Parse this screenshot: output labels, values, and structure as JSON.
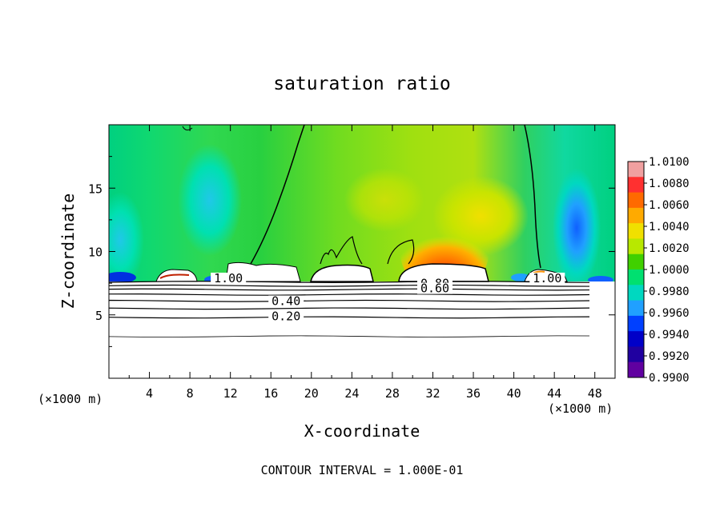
{
  "chart_data": {
    "type": "heatmap",
    "title": "saturation ratio",
    "xlabel": "X-coordinate",
    "ylabel": "Z-coordinate",
    "x_unit": "(×1000 m)",
    "x_unit_right": "(×1000 m)",
    "footer": "CONTOUR INTERVAL = 1.000E-01",
    "xlim": [
      0,
      50
    ],
    "ylim": [
      0,
      20
    ],
    "x_ticks": [
      "4",
      "8",
      "12",
      "16",
      "20",
      "24",
      "28",
      "32",
      "36",
      "40",
      "44",
      "48"
    ],
    "y_ticks": [
      "5",
      "10",
      "15"
    ],
    "colorbar": {
      "ticks": [
        "1.0100",
        "1.0080",
        "1.0060",
        "1.0040",
        "1.0020",
        "1.0000",
        "0.9980",
        "0.9960",
        "0.9940",
        "0.9920",
        "0.9900"
      ],
      "colors": [
        "#f0a0a0",
        "#ff3030",
        "#ff6a00",
        "#ffaa00",
        "#f0e000",
        "#b8e800",
        "#40d000",
        "#00e070",
        "#00d8c0",
        "#20a0ff",
        "#0040ff",
        "#0000c8",
        "#2000a0",
        "#6000a0"
      ]
    },
    "contour_labels": [
      {
        "text": "1.00",
        "x": 11.8,
        "z": 7.7
      },
      {
        "text": "1.00",
        "x": 43.3,
        "z": 7.7
      },
      {
        "text": "0.80",
        "x": 32.2,
        "z": 7.3
      },
      {
        "text": "0.60",
        "x": 32.2,
        "z": 6.9
      },
      {
        "text": "0.40",
        "x": 17.5,
        "z": 5.9
      },
      {
        "text": "0.20",
        "x": 17.5,
        "z": 4.7
      }
    ],
    "contour_levels_z": [
      7.6,
      7.3,
      7.0,
      6.6,
      6.1,
      5.5,
      4.8,
      3.3
    ]
  }
}
